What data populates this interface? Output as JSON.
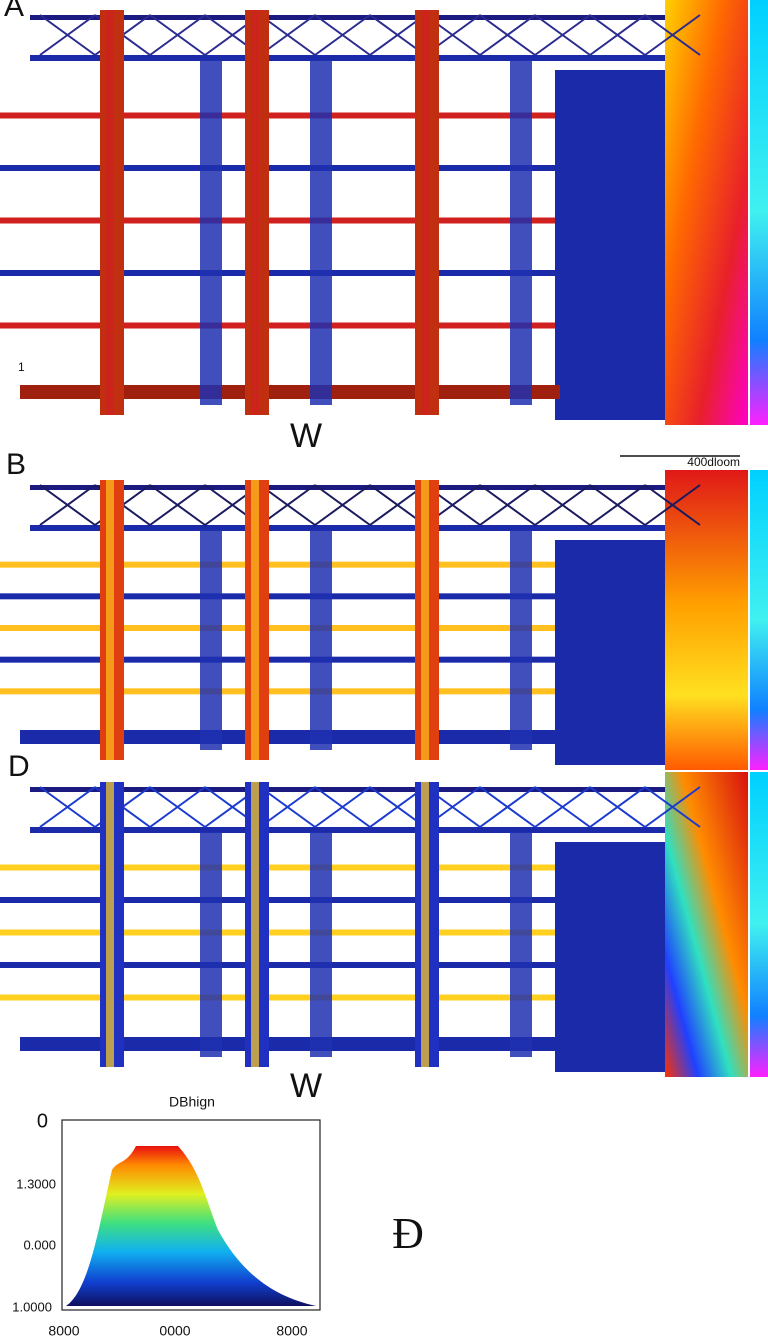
{
  "panels": [
    {
      "label": "A",
      "annotation": "1",
      "mark": "W"
    },
    {
      "label": "B",
      "scale_label": "400dloom"
    },
    {
      "label": "D",
      "mark": "W"
    }
  ],
  "plot": {
    "title": "DBhign",
    "y_labels": [
      "0",
      "1.3000",
      "0.000",
      "1.0000"
    ],
    "x_labels": [
      "8000",
      "0000",
      "8000"
    ]
  },
  "side_label": "Ɖ"
}
